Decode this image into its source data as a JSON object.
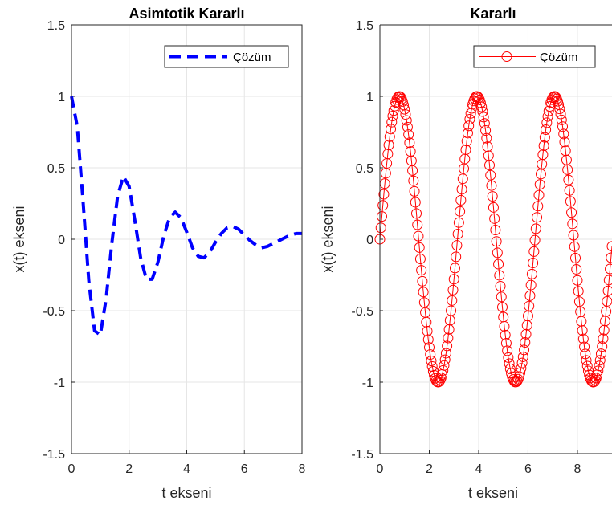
{
  "chart_data": [
    {
      "type": "line",
      "title": "Asimtotik Kararlı",
      "xlabel": "t ekseni",
      "ylabel": "x(t) ekseni",
      "xlim": [
        0,
        8
      ],
      "ylim": [
        -1.5,
        1.5
      ],
      "xticks": [
        "0",
        "2",
        "4",
        "6",
        "8"
      ],
      "yticks": [
        "-1.5",
        "-1",
        "-0.5",
        "0",
        "0.5",
        "1",
        "1.5"
      ],
      "grid": true,
      "legend": "top-right",
      "series": [
        {
          "name": "Çözüm",
          "color": "#0000ff",
          "line_style": "dashed",
          "marker": "none",
          "x": [
            0,
            0.2,
            0.4,
            0.6,
            0.8,
            1.0,
            1.2,
            1.4,
            1.6,
            1.8,
            2.0,
            2.2,
            2.4,
            2.6,
            2.8,
            3.0,
            3.2,
            3.4,
            3.6,
            3.8,
            4.0,
            4.2,
            4.4,
            4.6,
            4.8,
            5.0,
            5.2,
            5.4,
            5.6,
            5.8,
            6.0,
            6.2,
            6.4,
            6.6,
            6.8,
            7.0,
            7.2,
            7.4,
            7.6,
            7.8,
            8.0
          ],
          "y": [
            1.0,
            0.79,
            0.27,
            -0.29,
            -0.64,
            -0.67,
            -0.42,
            -0.03,
            0.3,
            0.44,
            0.37,
            0.13,
            -0.13,
            -0.28,
            -0.28,
            -0.16,
            0.02,
            0.15,
            0.19,
            0.15,
            0.05,
            -0.06,
            -0.12,
            -0.13,
            -0.09,
            -0.02,
            0.04,
            0.08,
            0.09,
            0.07,
            0.03,
            -0.01,
            -0.04,
            -0.06,
            -0.05,
            -0.03,
            -0.01,
            0.01,
            0.03,
            0.04,
            0.04
          ]
        }
      ]
    },
    {
      "type": "line",
      "title": "Kararlı",
      "xlabel": "t ekseni",
      "ylabel": "x(t) ekseni",
      "xlim": [
        0,
        9.4
      ],
      "ylim": [
        -1.5,
        1.5
      ],
      "xticks": [
        "0",
        "2",
        "4",
        "6",
        "8"
      ],
      "yticks": [
        "-1.5",
        "-1",
        "-0.5",
        "0",
        "0.5",
        "1",
        "1.5"
      ],
      "grid": true,
      "legend": "top-right",
      "series": [
        {
          "name": "Çözüm",
          "color": "#ff0000",
          "line_style": "solid",
          "marker": "circle",
          "function": "sin(2t)",
          "x_start": 0,
          "x_end": 9.42,
          "x_step": 0.04
        }
      ]
    }
  ]
}
